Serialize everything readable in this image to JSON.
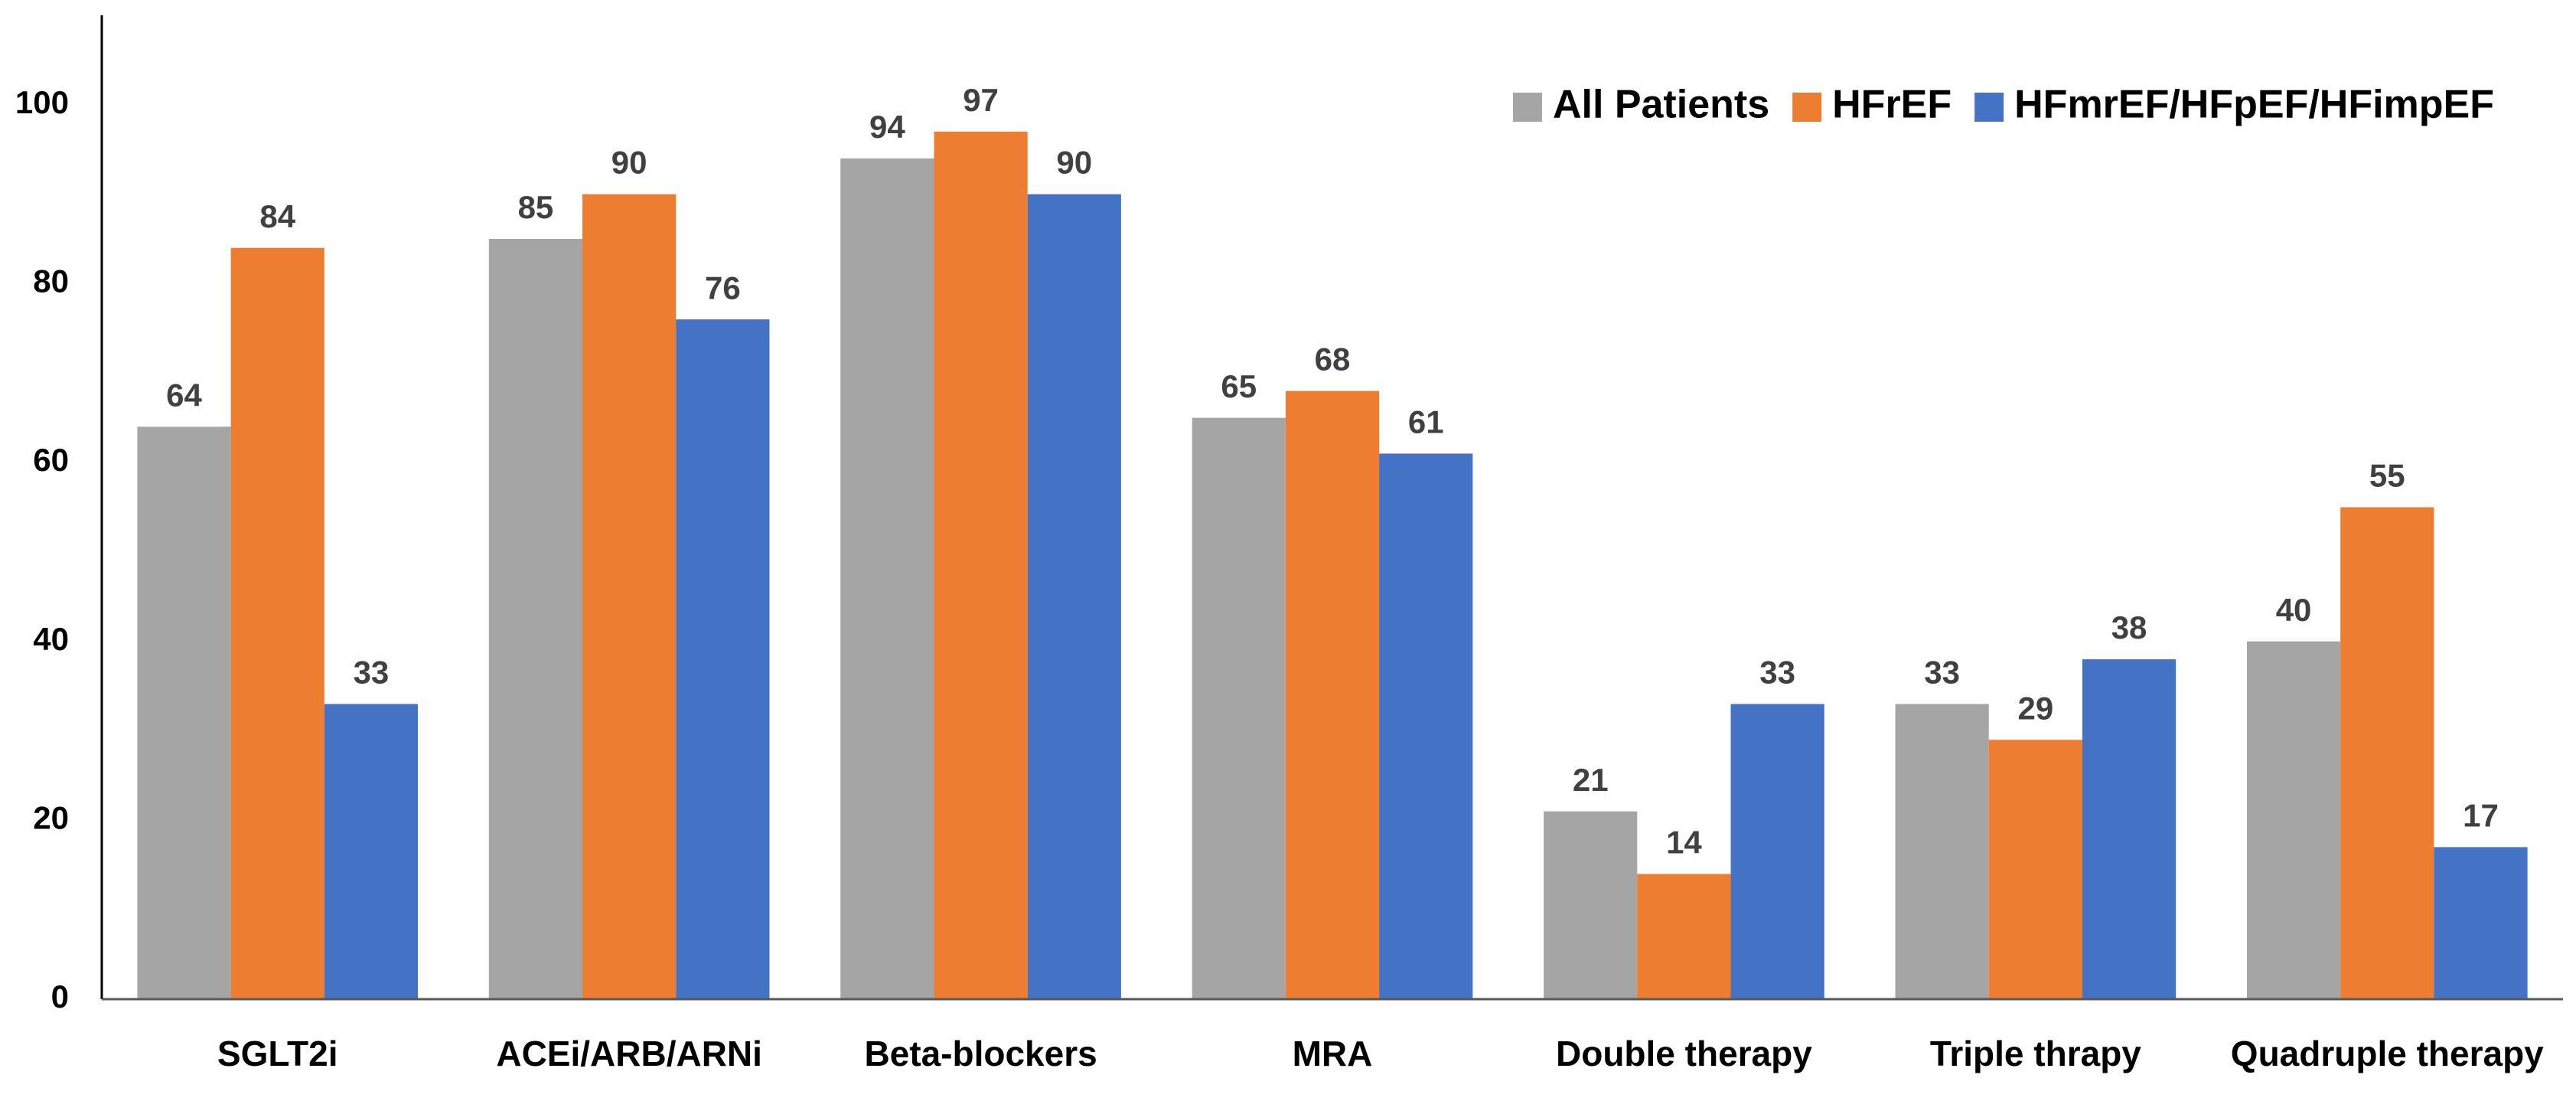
{
  "chart_data": {
    "type": "bar",
    "categories": [
      "SGLT2i",
      "ACEi/ARB/ARNi",
      "Beta-blockers",
      "MRA",
      "Double therapy",
      "Triple thrapy",
      "Quadruple therapy"
    ],
    "series": [
      {
        "name": "All Patients",
        "color": "#a5a5a5",
        "values": [
          64,
          85,
          94,
          65,
          21,
          33,
          40
        ]
      },
      {
        "name": "HFrEF",
        "color": "#ed7d31",
        "values": [
          84,
          90,
          97,
          68,
          14,
          29,
          55
        ]
      },
      {
        "name": "HFmrEF/HFpEF/HFimpEF",
        "color": "#4472c4",
        "values": [
          33,
          76,
          90,
          61,
          33,
          38,
          17
        ]
      }
    ],
    "ylim": [
      0,
      110
    ],
    "yticks": [
      0,
      20,
      40,
      60,
      80,
      100
    ],
    "grid": false,
    "legend": "top-right",
    "data_labels": true
  }
}
